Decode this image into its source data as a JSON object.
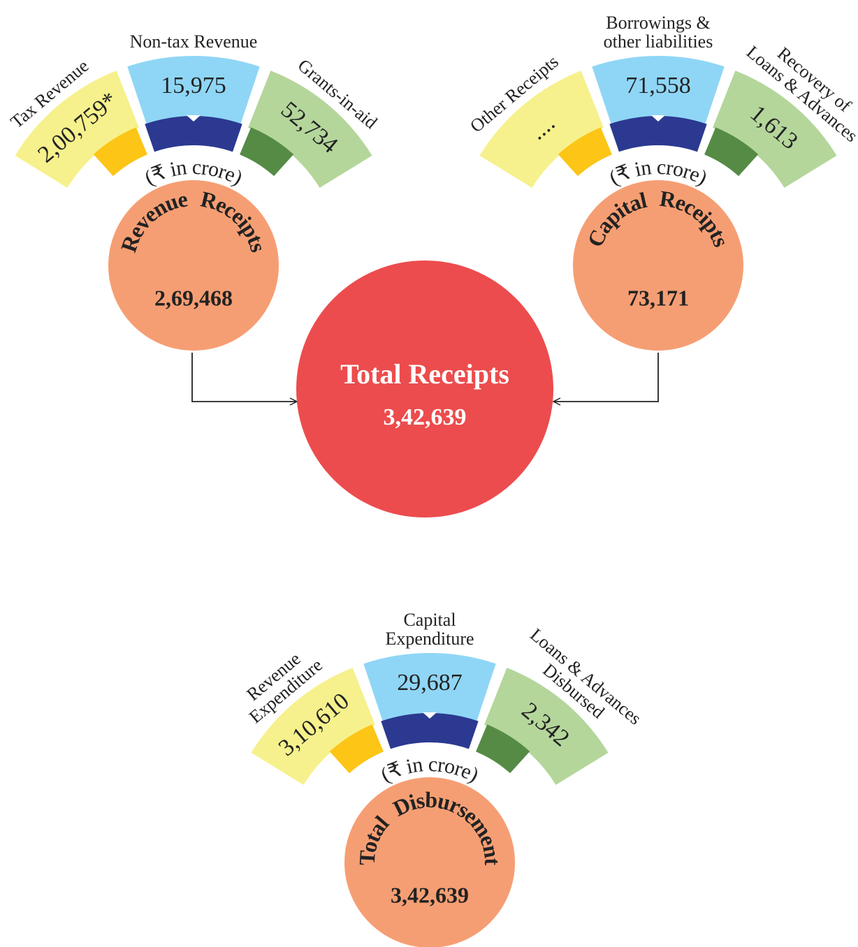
{
  "revenue_receipts": {
    "title": "Revenue Receipts",
    "value": "2,69,468",
    "unit": "(₹ in crore)",
    "segments": [
      {
        "label": [
          "Tax Revenue"
        ],
        "value": "2,00,759*"
      },
      {
        "label": [
          "Non-tax Revenue"
        ],
        "value": "15,975"
      },
      {
        "label": [
          "Grants-in-aid"
        ],
        "value": "52,734"
      }
    ]
  },
  "capital_receipts": {
    "title": "Capital Receipts",
    "value": "73,171",
    "unit": "(₹ in crore)",
    "segments": [
      {
        "label": [
          "Other Receipts"
        ],
        "value": "...."
      },
      {
        "label": [
          "Borrowings &",
          "other liabilities"
        ],
        "value": "71,558"
      },
      {
        "label": [
          "Recovery of",
          "Loans & Advances"
        ],
        "value": "1,613"
      }
    ]
  },
  "total_receipts": {
    "title": "Total Receipts",
    "value": "3,42,639"
  },
  "total_disbursement": {
    "title": "Total Disbursement",
    "value": "3,42,639",
    "unit": "(₹ in crore)",
    "segments": [
      {
        "label": [
          "Revenue",
          "Expenditure"
        ],
        "value": "3,10,610"
      },
      {
        "label": [
          "Capital",
          "Expenditure"
        ],
        "value": "29,687"
      },
      {
        "label": [
          "Loans & Advances",
          "Disbursed"
        ],
        "value": "2,342"
      }
    ]
  }
}
